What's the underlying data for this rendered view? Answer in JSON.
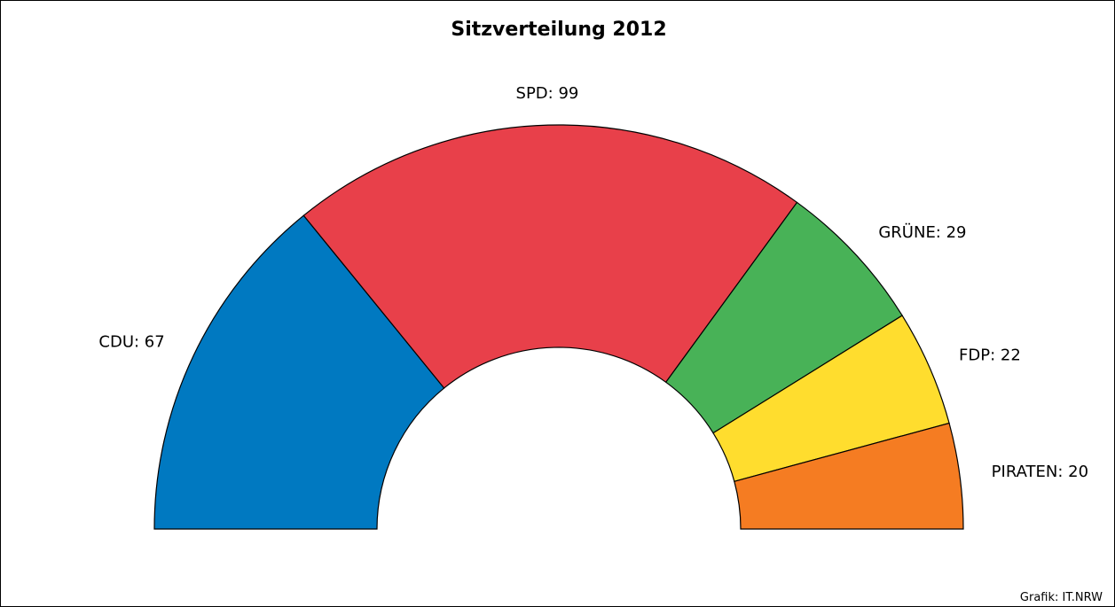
{
  "chart_data": {
    "type": "pie",
    "variant": "half-donut",
    "title": "Sitzverteilung 2012",
    "categories": [
      "CDU",
      "SPD",
      "GRÜNE",
      "FDP",
      "PIRATEN"
    ],
    "values": [
      67,
      99,
      29,
      22,
      20
    ],
    "labels": [
      "CDU: 67",
      "SPD: 99",
      "GRÜNE: 29",
      "FDP: 22",
      "PIRATEN: 20"
    ],
    "colors": [
      "#0079C1",
      "#E8404A",
      "#48B257",
      "#FFDD2E",
      "#F57C22"
    ],
    "total": 237,
    "legend": "none"
  },
  "credit": "Grafik: IT.NRW"
}
